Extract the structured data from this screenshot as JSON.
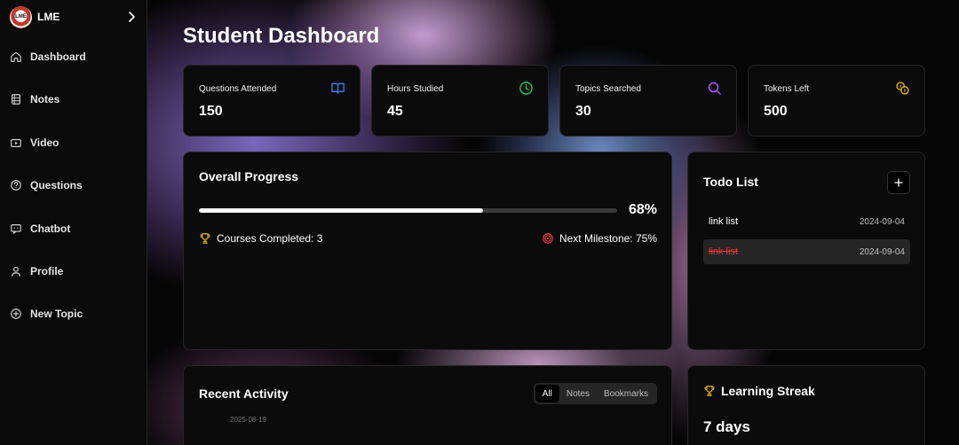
{
  "brand": {
    "name": "LME",
    "logo_text": "LME"
  },
  "sidebar": {
    "items": [
      {
        "label": "Dashboard",
        "icon": "home-icon"
      },
      {
        "label": "Notes",
        "icon": "notebook-icon"
      },
      {
        "label": "Video",
        "icon": "video-icon"
      },
      {
        "label": "Questions",
        "icon": "help-circle-icon"
      },
      {
        "label": "Chatbot",
        "icon": "chat-icon"
      },
      {
        "label": "Profile",
        "icon": "user-icon"
      },
      {
        "label": "New Topic",
        "icon": "plus-circle-icon"
      }
    ]
  },
  "page": {
    "title": "Student Dashboard"
  },
  "stats": [
    {
      "label": "Questions Attended",
      "value": "150",
      "icon": "book-icon",
      "color": "#3b82f6"
    },
    {
      "label": "Hours Studied",
      "value": "45",
      "icon": "clock-icon",
      "color": "#22c55e"
    },
    {
      "label": "Topics Searched",
      "value": "30",
      "icon": "search-icon",
      "color": "#a855f7"
    },
    {
      "label": "Tokens Left",
      "value": "500",
      "icon": "coins-icon",
      "color": "#eab308"
    }
  ],
  "progress": {
    "title": "Overall Progress",
    "percent_label": "68%",
    "percent": 0.68,
    "courses_completed": "Courses Completed: 3",
    "next_milestone": "Next Milestone: 75%"
  },
  "todo": {
    "title": "Todo List",
    "items": [
      {
        "text": "link list",
        "date": "2024-09-04",
        "done": false
      },
      {
        "text": "link list",
        "date": "2024-09-04",
        "done": true
      }
    ]
  },
  "activity": {
    "title": "Recent Activity",
    "tabs": [
      "All",
      "Notes",
      "Bookmarks"
    ],
    "active_tab": "All",
    "partial_text": "2025-08-19"
  },
  "streak": {
    "title": "Learning Streak",
    "value": "7 days"
  },
  "colors": {
    "accent_gold": "#eab308",
    "milestone_red": "#ef4444",
    "done_red": "#e53935"
  }
}
